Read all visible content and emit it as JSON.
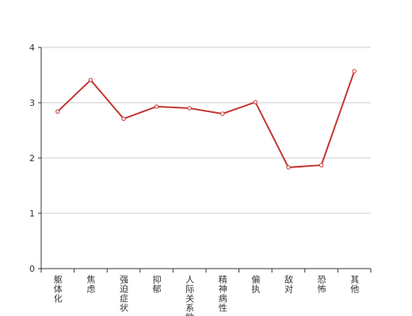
{
  "chart_data": {
    "type": "line",
    "categories": [
      "躯体化",
      "焦虑",
      "强迫症状",
      "抑郁",
      "人际关系敏感",
      "精神病性",
      "偏执",
      "敌对",
      "恐怖",
      "其他"
    ],
    "series": [
      {
        "color": "#c23531",
        "values": [
          2.84,
          3.41,
          2.71,
          2.93,
          2.9,
          2.8,
          3.01,
          1.83,
          1.87,
          3.57
        ]
      }
    ],
    "ylim": [
      0,
      4
    ],
    "yticks": [
      0,
      1,
      2,
      3,
      4
    ],
    "grid": true
  }
}
